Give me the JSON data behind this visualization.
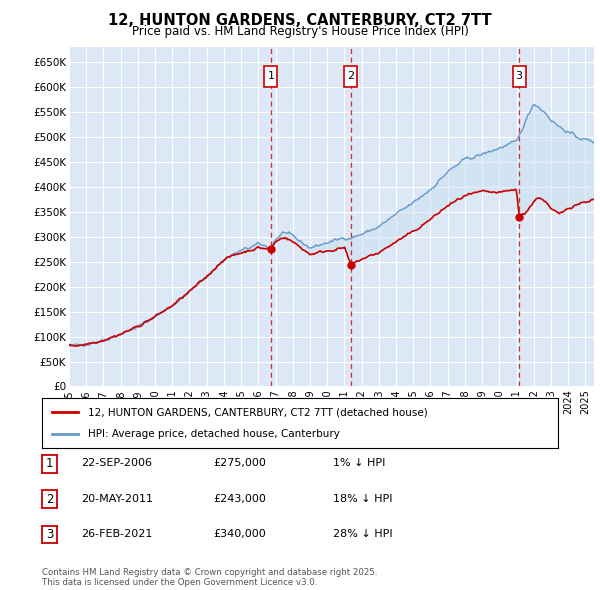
{
  "title": "12, HUNTON GARDENS, CANTERBURY, CT2 7TT",
  "subtitle": "Price paid vs. HM Land Registry's House Price Index (HPI)",
  "ylabel_ticks": [
    "£0",
    "£50K",
    "£100K",
    "£150K",
    "£200K",
    "£250K",
    "£300K",
    "£350K",
    "£400K",
    "£450K",
    "£500K",
    "£550K",
    "£600K",
    "£650K"
  ],
  "ytick_values": [
    0,
    50000,
    100000,
    150000,
    200000,
    250000,
    300000,
    350000,
    400000,
    450000,
    500000,
    550000,
    600000,
    650000
  ],
  "xlim_start": 1995.0,
  "xlim_end": 2025.5,
  "ylim_min": 0,
  "ylim_max": 680000,
  "bg_color": "#dce8f5",
  "grid_color": "#ffffff",
  "sale_dates": [
    2006.73,
    2011.38,
    2021.15
  ],
  "sale_labels": [
    "1",
    "2",
    "3"
  ],
  "sale_prices": [
    275000,
    243000,
    340000
  ],
  "sale_info": [
    {
      "label": "1",
      "date": "22-SEP-2006",
      "price": "£275,000",
      "hpi": "1% ↓ HPI"
    },
    {
      "label": "2",
      "date": "20-MAY-2011",
      "price": "£243,000",
      "hpi": "18% ↓ HPI"
    },
    {
      "label": "3",
      "date": "26-FEB-2021",
      "price": "£340,000",
      "hpi": "28% ↓ HPI"
    }
  ],
  "legend_line1": "12, HUNTON GARDENS, CANTERBURY, CT2 7TT (detached house)",
  "legend_line2": "HPI: Average price, detached house, Canterbury",
  "footnote": "Contains HM Land Registry data © Crown copyright and database right 2025.\nThis data is licensed under the Open Government Licence v3.0.",
  "line_color_red": "#cc0000",
  "line_color_blue": "#6699cc",
  "fill_color_blue": "#c8ddf0",
  "dashed_line_color": "#cc0000",
  "sale_box_color": "#cc0000"
}
